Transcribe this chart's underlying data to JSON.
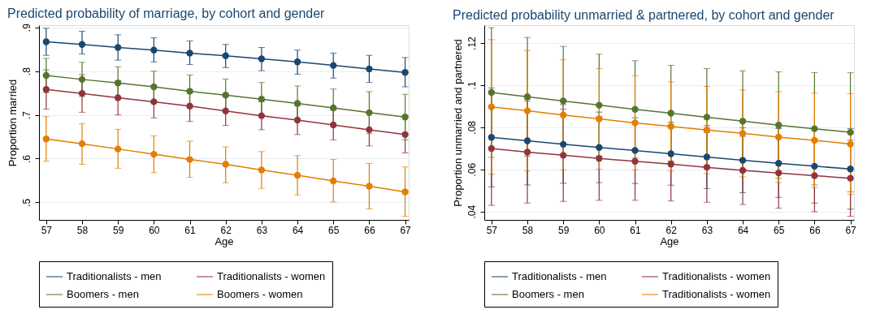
{
  "chart_data": [
    {
      "type": "line",
      "title": "Predicted probability of marriage, by cohort and gender",
      "xlabel": "Age",
      "ylabel": "Proportion married",
      "x": [
        57,
        58,
        59,
        60,
        61,
        62,
        63,
        64,
        65,
        66,
        67
      ],
      "xlim": [
        56.8,
        67.1
      ],
      "xticks": [
        57,
        58,
        59,
        60,
        61,
        62,
        63,
        64,
        65,
        66,
        67
      ],
      "ylim": [
        0.46,
        0.905
      ],
      "yticks": [
        {
          "value": 0.5,
          "label": ".5"
        },
        {
          "value": 0.6,
          "label": ".6"
        },
        {
          "value": 0.7,
          "label": ".7"
        },
        {
          "value": 0.8,
          "label": ".8"
        },
        {
          "value": 0.9,
          "label": ".9"
        }
      ],
      "grid": "y",
      "legend": "bottom",
      "marker": "circle",
      "line_style": "solid",
      "series": [
        {
          "name": "Traditionalists - men",
          "color": "#1a476f",
          "values": [
            0.867,
            0.861,
            0.854,
            0.848,
            0.841,
            0.835,
            0.828,
            0.821,
            0.813,
            0.805,
            0.797
          ],
          "errors": [
            [
              0.836,
              0.898
            ],
            [
              0.839,
              0.891
            ],
            [
              0.825,
              0.883
            ],
            [
              0.821,
              0.876
            ],
            [
              0.815,
              0.869
            ],
            [
              0.808,
              0.861
            ],
            [
              0.801,
              0.854
            ],
            [
              0.793,
              0.848
            ],
            [
              0.784,
              0.841
            ],
            [
              0.774,
              0.836
            ],
            [
              0.764,
              0.831
            ]
          ]
        },
        {
          "name": "Traditionalists - women",
          "color": "#90353b",
          "values": [
            0.758,
            0.749,
            0.739,
            0.73,
            0.72,
            0.709,
            0.698,
            0.688,
            0.677,
            0.666,
            0.655
          ],
          "errors": [
            [
              0.713,
              0.803
            ],
            [
              0.706,
              0.792
            ],
            [
              0.7,
              0.778
            ],
            [
              0.693,
              0.767
            ],
            [
              0.685,
              0.755
            ],
            [
              0.676,
              0.742
            ],
            [
              0.666,
              0.73
            ],
            [
              0.655,
              0.721
            ],
            [
              0.643,
              0.711
            ],
            [
              0.629,
              0.703
            ],
            [
              0.613,
              0.697
            ]
          ]
        },
        {
          "name": "Boomers - men",
          "color": "#55752f",
          "values": [
            0.79,
            0.781,
            0.773,
            0.764,
            0.754,
            0.745,
            0.736,
            0.726,
            0.716,
            0.705,
            0.695
          ],
          "errors": [
            [
              0.751,
              0.829
            ],
            [
              0.742,
              0.82
            ],
            [
              0.736,
              0.81
            ],
            [
              0.728,
              0.8
            ],
            [
              0.717,
              0.791
            ],
            [
              0.708,
              0.782
            ],
            [
              0.698,
              0.774
            ],
            [
              0.686,
              0.766
            ],
            [
              0.673,
              0.759
            ],
            [
              0.657,
              0.753
            ],
            [
              0.643,
              0.747
            ]
          ]
        },
        {
          "name": "Boomers - women",
          "color": "#e37e00",
          "values": [
            0.645,
            0.634,
            0.622,
            0.61,
            0.598,
            0.587,
            0.574,
            0.562,
            0.549,
            0.537,
            0.524
          ],
          "errors": [
            [
              0.594,
              0.696
            ],
            [
              0.587,
              0.68
            ],
            [
              0.578,
              0.667
            ],
            [
              0.568,
              0.652
            ],
            [
              0.557,
              0.64
            ],
            [
              0.545,
              0.627
            ],
            [
              0.532,
              0.616
            ],
            [
              0.517,
              0.607
            ],
            [
              0.501,
              0.598
            ],
            [
              0.485,
              0.589
            ],
            [
              0.468,
              0.581
            ]
          ]
        }
      ]
    },
    {
      "type": "line",
      "title": "Predicted probability unmarried & partnered, by cohort and gender",
      "xlabel": "Age",
      "ylabel": "Proportion unmarried and partnered",
      "x": [
        57,
        58,
        59,
        60,
        61,
        62,
        63,
        64,
        65,
        66,
        67
      ],
      "xlim": [
        56.8,
        67.1
      ],
      "xticks": [
        57,
        58,
        59,
        60,
        61,
        62,
        63,
        64,
        65,
        66,
        67
      ],
      "ylim": [
        0.036,
        0.1285
      ],
      "yticks": [
        {
          "value": 0.04,
          "label": ".04"
        },
        {
          "value": 0.06,
          "label": ".06"
        },
        {
          "value": 0.08,
          "label": ".08"
        },
        {
          "value": 0.1,
          "label": ".1"
        },
        {
          "value": 0.12,
          "label": ".12"
        }
      ],
      "grid": "y",
      "legend": "bottom",
      "marker": "circle",
      "line_style": "solid",
      "series": [
        {
          "name": "Traditionalists - men",
          "color": "#1a476f",
          "values": [
            0.0752,
            0.0736,
            0.0719,
            0.0704,
            0.069,
            0.0674,
            0.0659,
            0.0643,
            0.0629,
            0.0615,
            0.0602
          ],
          "errors": [
            [
              0.0517,
              0.0987
            ],
            [
              0.0526,
              0.0932
            ],
            [
              0.0534,
              0.0908
            ],
            [
              0.0537,
              0.0872
            ],
            [
              0.0533,
              0.0845
            ],
            [
              0.0525,
              0.0824
            ],
            [
              0.0509,
              0.0808
            ],
            [
              0.0489,
              0.0797
            ],
            [
              0.0467,
              0.0794
            ],
            [
              0.044,
              0.0791
            ],
            [
              0.0411,
              0.0794
            ]
          ]
        },
        {
          "name": "Traditionalists - women",
          "color": "#90353b",
          "values": [
            0.0699,
            0.0682,
            0.0667,
            0.0652,
            0.0638,
            0.0625,
            0.061,
            0.0595,
            0.0583,
            0.057,
            0.0558
          ],
          "errors": [
            [
              0.0429,
              0.0969
            ],
            [
              0.044,
              0.0924
            ],
            [
              0.0448,
              0.0886
            ],
            [
              0.0453,
              0.0851
            ],
            [
              0.0453,
              0.0823
            ],
            [
              0.045,
              0.08
            ],
            [
              0.0444,
              0.0776
            ],
            [
              0.0433,
              0.0757
            ],
            [
              0.0416,
              0.075
            ],
            [
              0.0399,
              0.0741
            ],
            [
              0.0377,
              0.0739
            ]
          ]
        },
        {
          "name": "Boomers - men",
          "color": "#55752f",
          "values": [
            0.0965,
            0.0945,
            0.0925,
            0.0905,
            0.0885,
            0.0867,
            0.0848,
            0.0829,
            0.081,
            0.0793,
            0.0776
          ],
          "errors": [
            [
              0.0657,
              0.1273
            ],
            [
              0.0663,
              0.1227
            ],
            [
              0.0666,
              0.1184
            ],
            [
              0.0663,
              0.1147
            ],
            [
              0.0654,
              0.1116
            ],
            [
              0.064,
              0.1094
            ],
            [
              0.0617,
              0.1079
            ],
            [
              0.059,
              0.1068
            ],
            [
              0.0557,
              0.1063
            ],
            [
              0.0526,
              0.106
            ],
            [
              0.0493,
              0.1059
            ]
          ]
        },
        {
          "name": "Traditionalists - women",
          "color": "#e37e00",
          "values": [
            0.0897,
            0.0878,
            0.0858,
            0.084,
            0.0821,
            0.0804,
            0.0787,
            0.0771,
            0.0753,
            0.0738,
            0.072
          ],
          "errors": [
            [
              0.0578,
              0.1216
            ],
            [
              0.0592,
              0.1164
            ],
            [
              0.0597,
              0.112
            ],
            [
              0.0601,
              0.1079
            ],
            [
              0.0598,
              0.1045
            ],
            [
              0.0592,
              0.1015
            ],
            [
              0.058,
              0.0994
            ],
            [
              0.0565,
              0.0977
            ],
            [
              0.0538,
              0.0969
            ],
            [
              0.0514,
              0.0962
            ],
            [
              0.0482,
              0.0959
            ]
          ]
        }
      ]
    }
  ]
}
